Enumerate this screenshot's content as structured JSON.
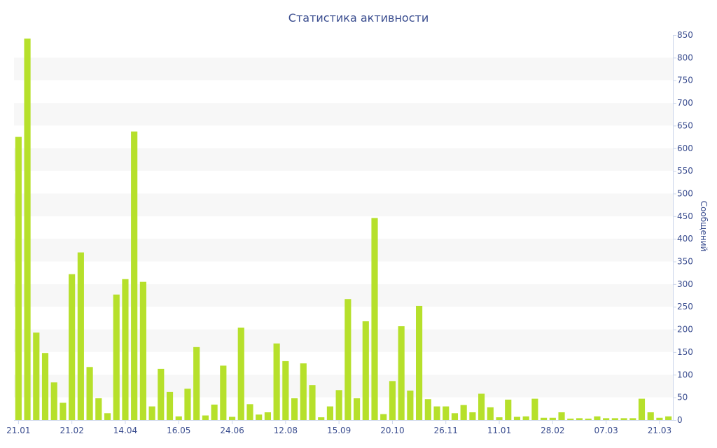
{
  "chart_data": {
    "type": "bar",
    "title": "Статистика активности",
    "ylabel": "Сообщений",
    "xlabel": "",
    "ylim": [
      0,
      850
    ],
    "y_ticks": [
      0,
      50,
      100,
      150,
      200,
      250,
      300,
      350,
      400,
      450,
      500,
      550,
      600,
      650,
      700,
      750,
      800,
      850
    ],
    "y_axis_side": "right",
    "grid": "alternating horizontal bands",
    "x_tick_labels": [
      {
        "label": "21.01",
        "index": 0
      },
      {
        "label": "21.02",
        "index": 6
      },
      {
        "label": "14.04",
        "index": 12
      },
      {
        "label": "16.05",
        "index": 18
      },
      {
        "label": "24.06",
        "index": 24
      },
      {
        "label": "12.08",
        "index": 30
      },
      {
        "label": "15.09",
        "index": 36
      },
      {
        "label": "20.10",
        "index": 42
      },
      {
        "label": "26.11",
        "index": 48
      },
      {
        "label": "11.01",
        "index": 54
      },
      {
        "label": "28.02",
        "index": 60
      },
      {
        "label": "07.03",
        "index": 66
      },
      {
        "label": "21.03",
        "index": 72
      }
    ],
    "values": [
      625,
      842,
      193,
      148,
      83,
      38,
      322,
      370,
      117,
      48,
      15,
      277,
      311,
      637,
      305,
      30,
      113,
      62,
      8,
      69,
      161,
      10,
      34,
      120,
      7,
      204,
      35,
      12,
      17,
      169,
      130,
      48,
      125,
      77,
      6,
      30,
      66,
      267,
      48,
      218,
      446,
      13,
      86,
      207,
      65,
      252,
      46,
      30,
      30,
      15,
      33,
      17,
      58,
      28,
      6,
      45,
      7,
      8,
      47,
      5,
      5,
      17,
      3,
      4,
      3,
      8,
      4,
      4,
      4,
      4,
      47,
      17,
      5,
      8
    ],
    "bar_color": "#b6e02b",
    "text_color": "#3a4d8f"
  }
}
